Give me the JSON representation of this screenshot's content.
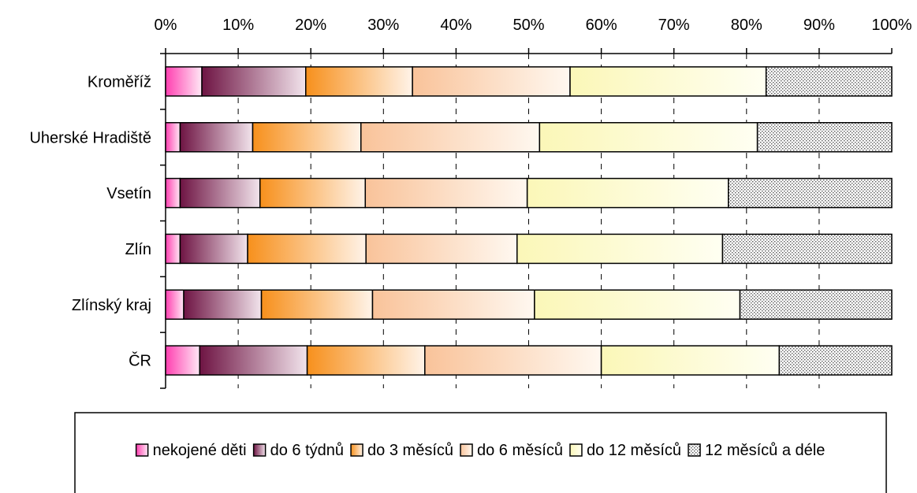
{
  "chart_data": {
    "type": "bar",
    "orientation": "horizontal",
    "stacked": "percent",
    "categories": [
      "Kroměříž",
      "Uherské Hradiště",
      "Vsetín",
      "Zlín",
      "Zlínský kraj",
      "ČR"
    ],
    "x_ticks": [
      "0%",
      "10%",
      "20%",
      "30%",
      "40%",
      "50%",
      "60%",
      "70%",
      "80%",
      "90%",
      "100%"
    ],
    "xlim": [
      0,
      100
    ],
    "grid": "vertical dashed",
    "legend_position": "bottom",
    "series": [
      {
        "name": "nekojené děti",
        "values": [
          5.0,
          2.0,
          2.0,
          2.0,
          2.5,
          4.7
        ]
      },
      {
        "name": "do 6 týdnů",
        "values": [
          14.3,
          10.0,
          11.0,
          9.3,
          10.7,
          14.8
        ]
      },
      {
        "name": "do 3 měsíců",
        "values": [
          14.7,
          14.9,
          14.5,
          16.3,
          15.3,
          16.2
        ]
      },
      {
        "name": "do 6 měsíců",
        "values": [
          21.7,
          24.6,
          22.3,
          20.8,
          22.3,
          24.3
        ]
      },
      {
        "name": "do 12 měsíců",
        "values": [
          27.0,
          30.0,
          27.7,
          28.3,
          28.3,
          24.5
        ]
      },
      {
        "name": "12 měsíců a déle",
        "values": [
          17.3,
          18.5,
          22.5,
          23.3,
          20.9,
          15.5
        ]
      }
    ],
    "colors": [
      "#e8139b",
      "#7a1f4d",
      "#f28c1e",
      "#f7b07a",
      "#f5f088",
      "#d0d0d0"
    ]
  }
}
